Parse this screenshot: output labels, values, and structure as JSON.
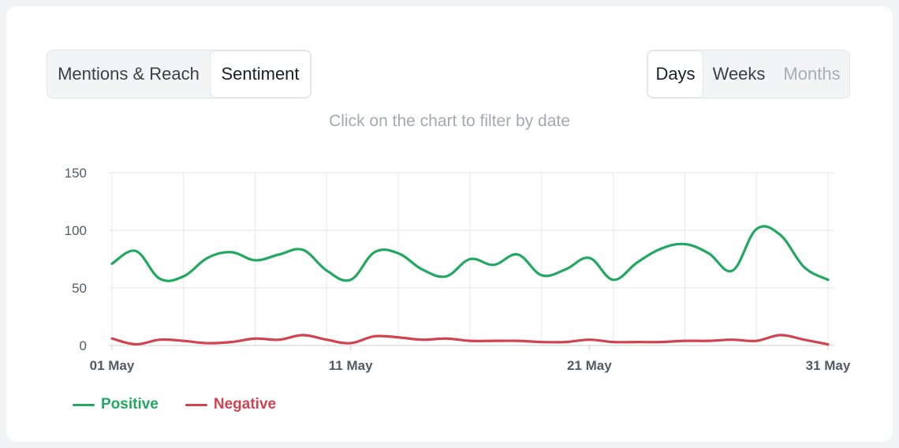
{
  "tabs": {
    "view": [
      {
        "label": "Mentions & Reach",
        "active": false
      },
      {
        "label": "Sentiment",
        "active": true
      }
    ],
    "period": [
      {
        "label": "Days",
        "active": true,
        "disabled": false
      },
      {
        "label": "Weeks",
        "active": false,
        "disabled": false
      },
      {
        "label": "Months",
        "active": false,
        "disabled": true
      }
    ]
  },
  "hint": "Click on the chart to filter by date",
  "colors": {
    "positive": "#22a861",
    "negative": "#d1434f",
    "grid": "#e7e9ec",
    "axis_text": "#555b63"
  },
  "chart_data": {
    "type": "line",
    "x": [
      "01 May",
      "02 May",
      "03 May",
      "04 May",
      "05 May",
      "06 May",
      "07 May",
      "08 May",
      "09 May",
      "10 May",
      "11 May",
      "12 May",
      "13 May",
      "14 May",
      "15 May",
      "16 May",
      "17 May",
      "18 May",
      "19 May",
      "20 May",
      "21 May",
      "22 May",
      "23 May",
      "24 May",
      "25 May",
      "26 May",
      "27 May",
      "28 May",
      "29 May",
      "30 May",
      "31 May"
    ],
    "xticks": [
      "01 May",
      "11 May",
      "21 May",
      "31 May"
    ],
    "yticks": [
      0,
      50,
      100,
      150
    ],
    "ylim": [
      0,
      150
    ],
    "grid": true,
    "legend_position": "bottom-left",
    "series": [
      {
        "name": "Positive",
        "color": "#22a861",
        "values": [
          71,
          82,
          58,
          60,
          76,
          81,
          74,
          79,
          83,
          65,
          57,
          81,
          80,
          66,
          60,
          75,
          70,
          79,
          61,
          66,
          76,
          57,
          72,
          84,
          88,
          80,
          65,
          101,
          96,
          68,
          57
        ]
      },
      {
        "name": "Negative",
        "color": "#d1434f",
        "values": [
          6,
          1,
          5,
          4,
          2,
          3,
          6,
          5,
          9,
          5,
          2,
          8,
          7,
          5,
          6,
          4,
          4,
          4,
          3,
          3,
          5,
          3,
          3,
          3,
          4,
          4,
          5,
          4,
          9,
          5,
          1
        ]
      }
    ]
  }
}
